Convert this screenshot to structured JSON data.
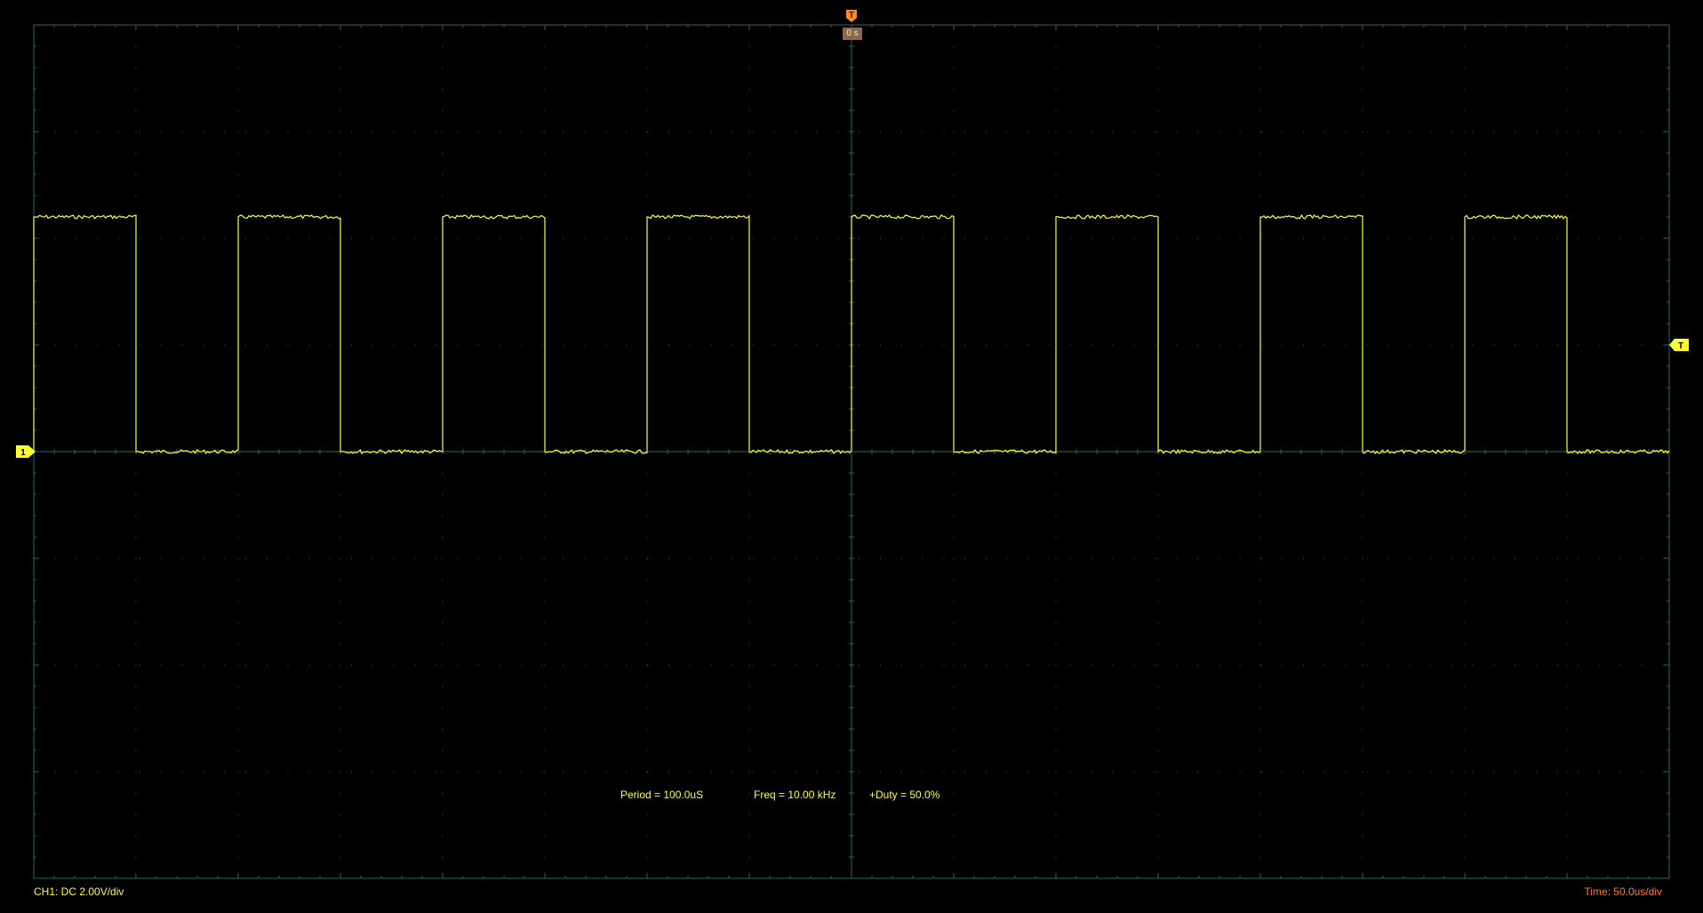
{
  "trigger": {
    "time_marker_glyph": "T",
    "level_marker_glyph": "T",
    "position_label": "0 s",
    "marker_color": "#ff8c1a",
    "level_color": "#ffff33"
  },
  "channel1": {
    "marker_glyph": "1",
    "status": "CH1: DC 2.00V/div",
    "color": "#ffff33"
  },
  "measurements": {
    "period": "Period = 100.0uS",
    "freq": "Freq = 10.00 kHz",
    "duty": "+Duty = 50.0%"
  },
  "timebase": {
    "status": "Time: 50.0us/div",
    "color": "#ff7a33"
  },
  "display": {
    "grid_color": "#1f6b5f",
    "divisions_x": 16,
    "divisions_y": 8
  },
  "waveform": {
    "type": "square",
    "period_us": 100,
    "duty_percent": 50,
    "high_level_v": 4.4,
    "low_level_v": 0,
    "volts_per_div": 2,
    "time_per_div_us": 50,
    "start_time_us": -400,
    "start_state": "high"
  }
}
